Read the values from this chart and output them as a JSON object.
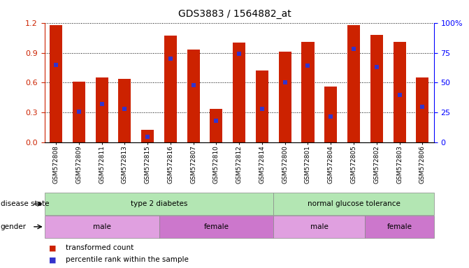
{
  "title": "GDS3883 / 1564882_at",
  "samples": [
    "GSM572808",
    "GSM572809",
    "GSM572811",
    "GSM572813",
    "GSM572815",
    "GSM572816",
    "GSM572807",
    "GSM572810",
    "GSM572812",
    "GSM572814",
    "GSM572800",
    "GSM572801",
    "GSM572804",
    "GSM572805",
    "GSM572802",
    "GSM572803",
    "GSM572806"
  ],
  "bar_heights": [
    1.18,
    0.61,
    0.65,
    0.64,
    0.13,
    1.07,
    0.93,
    0.34,
    1.0,
    0.72,
    0.91,
    1.01,
    0.56,
    1.18,
    1.08,
    1.01,
    0.65
  ],
  "percentile_ranks": [
    65,
    26,
    32,
    28,
    5,
    70,
    48,
    18,
    74,
    28,
    50,
    64,
    22,
    78,
    63,
    40,
    30
  ],
  "bar_color": "#cc2200",
  "dot_color": "#3333cc",
  "ylim_left": [
    0,
    1.2
  ],
  "ylim_right": [
    0,
    100
  ],
  "yticks_left": [
    0,
    0.3,
    0.6,
    0.9,
    1.2
  ],
  "yticks_right": [
    0,
    25,
    50,
    75,
    100
  ],
  "ytick_labels_right": [
    "0",
    "25",
    "50",
    "75",
    "100%"
  ],
  "disease_state_groups": [
    {
      "label": "type 2 diabetes",
      "start": 0,
      "end": 9,
      "color": "#b3e6b3"
    },
    {
      "label": "normal glucose tolerance",
      "start": 10,
      "end": 16,
      "color": "#b3e6b3"
    }
  ],
  "gender_groups": [
    {
      "label": "male",
      "start": 0,
      "end": 4,
      "color": "#e0a0e0"
    },
    {
      "label": "female",
      "start": 5,
      "end": 9,
      "color": "#cc77cc"
    },
    {
      "label": "male",
      "start": 10,
      "end": 13,
      "color": "#e0a0e0"
    },
    {
      "label": "female",
      "start": 14,
      "end": 16,
      "color": "#cc77cc"
    }
  ],
  "legend_items": [
    {
      "label": "transformed count",
      "color": "#cc2200"
    },
    {
      "label": "percentile rank within the sample",
      "color": "#3333cc"
    }
  ],
  "disease_state_label": "disease state",
  "gender_label": "gender",
  "bar_width": 0.55
}
